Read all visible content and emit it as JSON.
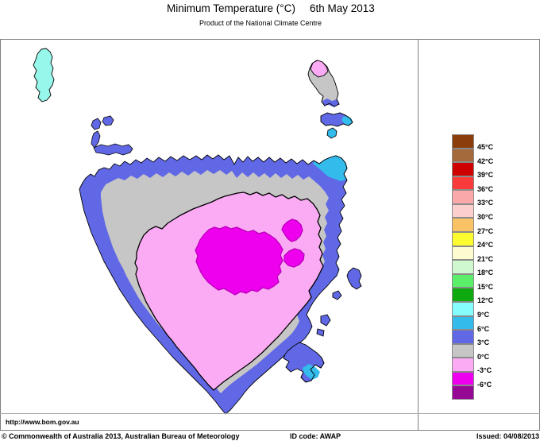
{
  "header": {
    "title": "Minimum Temperature (°C)",
    "date": "6th May 2013",
    "subtitle": "Product of the National Climate Centre"
  },
  "footer": {
    "url": "http://www.bom.gov.au",
    "copyright": "© Commonwealth of Australia 2013, Australian Bureau of Meteorology",
    "id_code": "ID code: AWAP",
    "issued": "Issued: 04/08/2013"
  },
  "legend": {
    "labels": [
      "45°C",
      "42°C",
      "39°C",
      "36°C",
      "33°C",
      "30°C",
      "27°C",
      "24°C",
      "21°C",
      "18°C",
      "15°C",
      "12°C",
      "9°C",
      "6°C",
      "3°C",
      "0°C",
      "-3°C",
      "-6°C"
    ],
    "colors": [
      "#8B3E0B",
      "#A56A3C",
      "#CE0000",
      "#FB3B3B",
      "#FBA8A8",
      "#FCCFCF",
      "#F9C264",
      "#FBFB30",
      "#FCFCCF",
      "#CFF8CF",
      "#5BEF6B",
      "#0EA90E",
      "#86FDFD",
      "#33BBEB",
      "#6168E6",
      "#C6C6C6",
      "#FBAAF4",
      "#EE00EE",
      "#950895"
    ]
  },
  "map": {
    "region_name": "Tasmania",
    "palette": {
      "sea": "#FFFFFF",
      "band_3_to_6": "#6168E6",
      "band_6_to_9": "#33BBEB",
      "band_9_to_12": "#97F7EA",
      "band_0_to_3": "#C6C6C6",
      "band_minus3_to_0": "#FBAAF4",
      "band_minus6_to_minus3": "#EE00EE",
      "coast_outline": "#000000",
      "magenta_outline": "#BB00BB"
    }
  }
}
